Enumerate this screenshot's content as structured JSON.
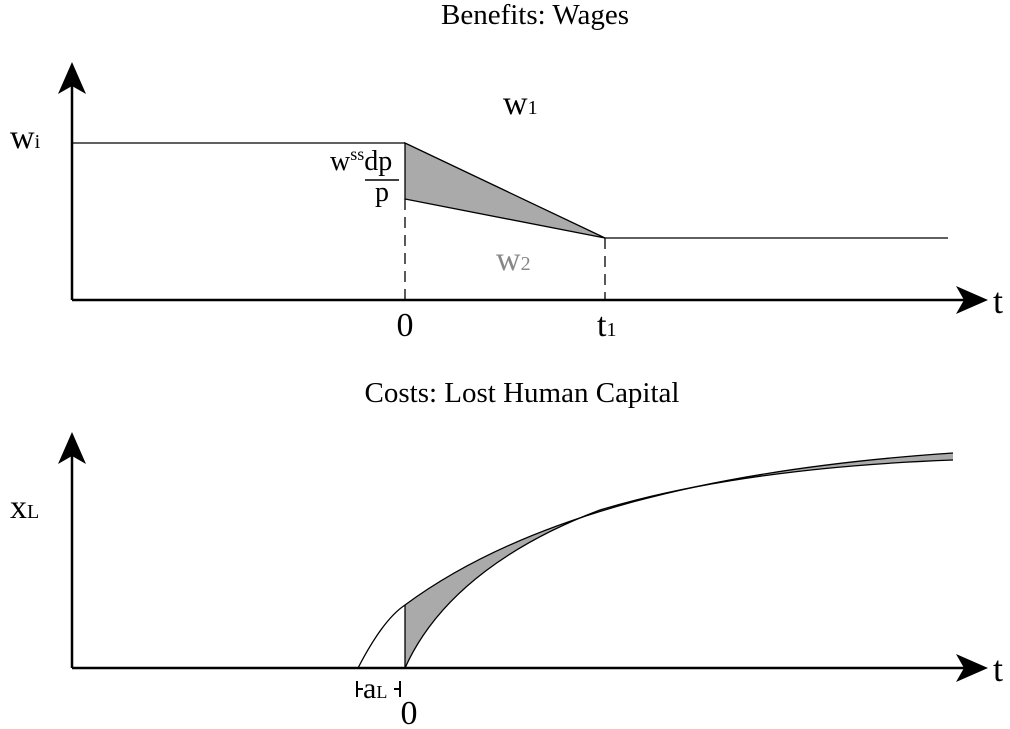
{
  "panels": [
    {
      "title": "Benefits: Wages",
      "y_label": {
        "base": "w",
        "sub": "i"
      },
      "upper_label": {
        "base": "w",
        "sub": "1"
      },
      "lower_label": {
        "base": "w",
        "sub": "2"
      },
      "shift_label": {
        "base": "w",
        "sup": "ss",
        "numerator": "dp",
        "denominator": "p"
      },
      "x_axis_label": "t",
      "x_ticks": [
        {
          "base": "0"
        },
        {
          "base": "t",
          "sub": "1"
        }
      ]
    },
    {
      "title": "Costs: Lost Human Capital",
      "y_label": {
        "base": "x",
        "sub": "L"
      },
      "interval_label": {
        "base": "a",
        "sub": "L"
      },
      "x_axis_label": "t",
      "x_ticks": [
        {
          "base": "0"
        }
      ]
    }
  ]
}
